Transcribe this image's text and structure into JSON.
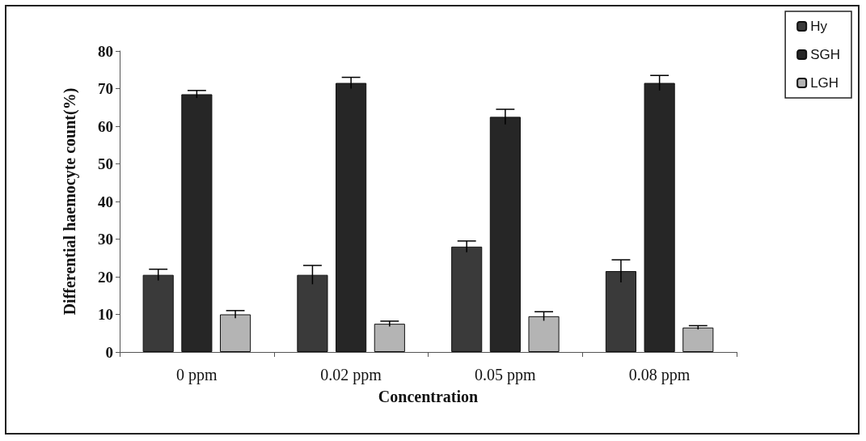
{
  "chart_data": {
    "type": "bar",
    "xlabel": "Concentration",
    "ylabel": "Differential haemocyte count(%)",
    "categories": [
      "0 ppm",
      "0.02 ppm",
      "0.05 ppm",
      "0.08 ppm"
    ],
    "series": [
      {
        "name": "Hy",
        "color": "#3a3a3a",
        "values": [
          20.5,
          20.5,
          28,
          21.5
        ],
        "errors": [
          1.5,
          2.5,
          1.5,
          3
        ]
      },
      {
        "name": "SGH",
        "color": "#262626",
        "values": [
          68.5,
          71.5,
          62.5,
          71.5
        ],
        "errors": [
          1,
          1.5,
          2,
          2
        ]
      },
      {
        "name": "LGH",
        "color": "#b4b4b4",
        "values": [
          10,
          7.5,
          9.5,
          6.5
        ],
        "errors": [
          1,
          0.7,
          1.2,
          0.5
        ]
      }
    ],
    "ylim": [
      0,
      80
    ],
    "yticks": [
      0,
      10,
      20,
      30,
      40,
      50,
      60,
      70,
      80
    ],
    "grid": false,
    "legend": "top right"
  }
}
